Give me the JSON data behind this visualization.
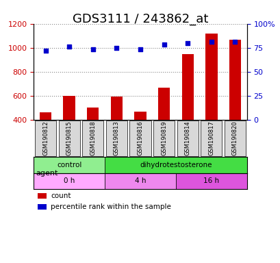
{
  "title": "GDS3111 / 243862_at",
  "samples": [
    "GSM190812",
    "GSM190815",
    "GSM190818",
    "GSM190813",
    "GSM190816",
    "GSM190819",
    "GSM190814",
    "GSM190817",
    "GSM190820"
  ],
  "counts": [
    460,
    600,
    500,
    590,
    470,
    665,
    945,
    1115,
    1065
  ],
  "percentiles": [
    72,
    76,
    73,
    75,
    73,
    78,
    80,
    81,
    81
  ],
  "ylim_left": [
    400,
    1200
  ],
  "ylim_right": [
    0,
    100
  ],
  "yticks_left": [
    400,
    600,
    800,
    1000,
    1200
  ],
  "yticks_right": [
    0,
    25,
    50,
    75,
    100
  ],
  "yticklabels_right": [
    "0",
    "25",
    "50",
    "75",
    "100%"
  ],
  "bar_color": "#cc0000",
  "dot_color": "#0000cc",
  "bar_width": 0.5,
  "agent_groups": [
    {
      "label": "control",
      "start": 0,
      "end": 3,
      "color": "#90ee90"
    },
    {
      "label": "dihydrotestosterone",
      "start": 3,
      "end": 9,
      "color": "#44dd44"
    }
  ],
  "time_groups": [
    {
      "label": "0 h",
      "start": 0,
      "end": 3,
      "color": "#ffaaff"
    },
    {
      "label": "4 h",
      "start": 3,
      "end": 6,
      "color": "#ee88ee"
    },
    {
      "label": "16 h",
      "start": 6,
      "end": 9,
      "color": "#dd55dd"
    }
  ],
  "legend_items": [
    {
      "label": "count",
      "color": "#cc0000",
      "marker": "s"
    },
    {
      "label": "percentile rank within the sample",
      "color": "#0000cc",
      "marker": "s"
    }
  ],
  "grid_color": "#888888",
  "tick_label_color_left": "#cc0000",
  "tick_label_color_right": "#0000cc",
  "title_fontsize": 13,
  "axis_fontsize": 8,
  "label_fontsize": 9
}
